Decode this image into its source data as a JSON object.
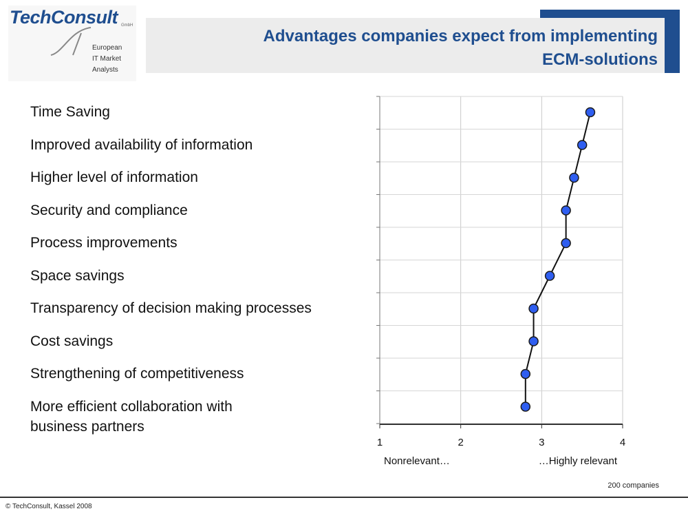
{
  "logo": {
    "name": "TechConsult",
    "suffix": "GmbH",
    "tagline": "European\nIT Market\nAnalysts"
  },
  "header": {
    "title_line1": "Advantages companies expect from implementing",
    "title_line2": "ECM-solutions",
    "accent_color": "#1f4e8f"
  },
  "chart_data": {
    "type": "line",
    "orientation": "horizontal-profile",
    "categories": [
      "Time Saving",
      "Improved availability of information",
      "Higher level of information",
      "Security and compliance",
      "Process improvements",
      "Space savings",
      "Transparency of decision making processes",
      "Cost savings",
      "Strengthening of competitiveness",
      "More efficient collaboration with\n business partners"
    ],
    "values": [
      3.6,
      3.5,
      3.4,
      3.3,
      3.3,
      3.1,
      2.9,
      2.9,
      2.8,
      2.8
    ],
    "xlim": [
      1,
      4
    ],
    "xticks": [
      "1",
      "2",
      "3",
      "4"
    ],
    "xlabel_left": "Nonrelevant…",
    "xlabel_right": "…Highly relevant",
    "marker_color": "#2f5ef0",
    "grid": true
  },
  "note": "200 companies",
  "footer": "© TechConsult, Kassel 2008"
}
